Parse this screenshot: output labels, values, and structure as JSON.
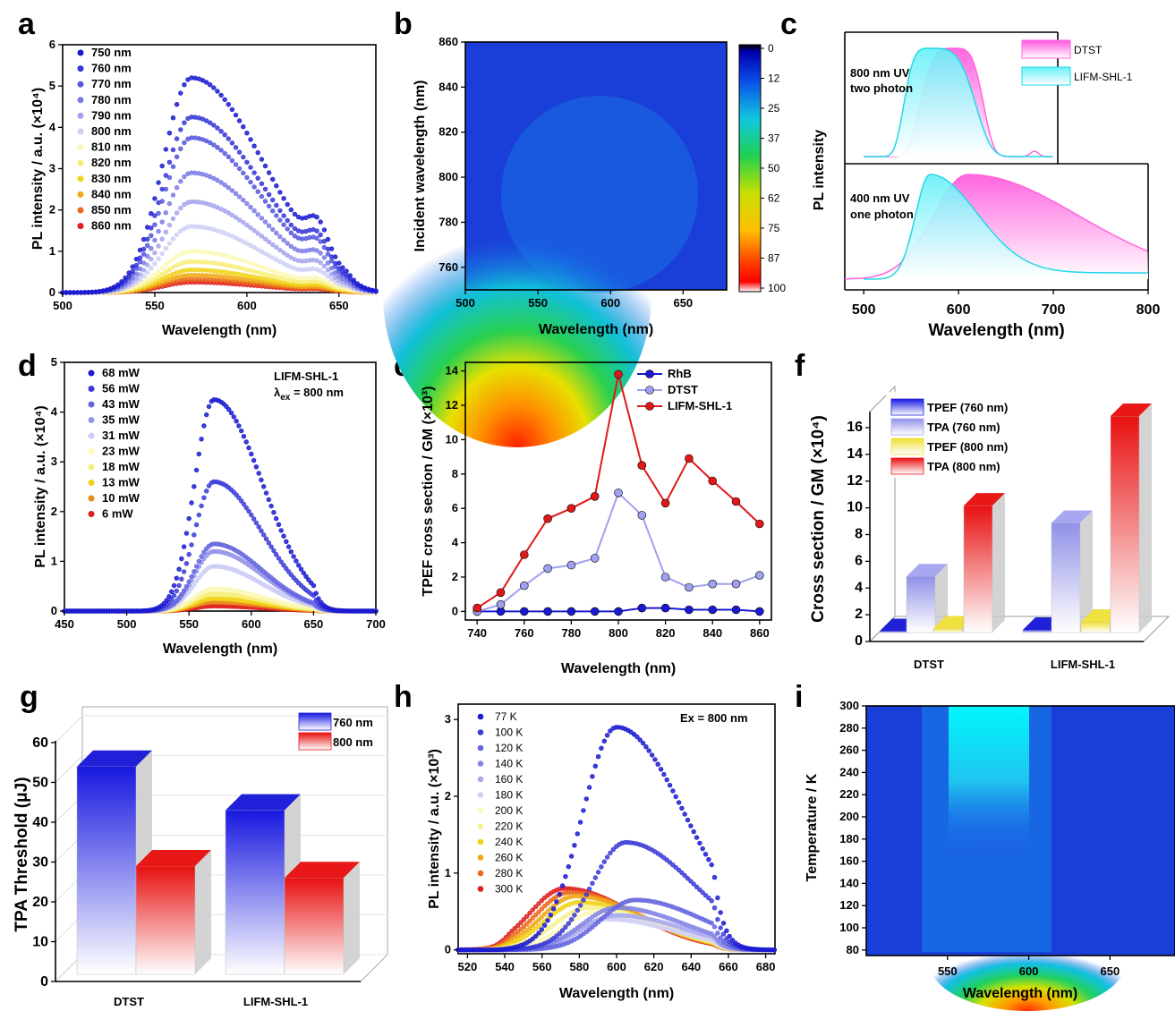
{
  "chart_data": [
    {
      "panel": "a",
      "type": "line",
      "xlabel": "Wavelength (nm)",
      "ylabel": "PL intensity / a.u. (×10⁴)",
      "xlim": [
        500,
        670
      ],
      "ylim": [
        0,
        6
      ],
      "xticks": [
        "500",
        "550",
        "600",
        "650"
      ],
      "yticks": [
        "0",
        "1",
        "2",
        "3",
        "4",
        "5",
        "6"
      ],
      "peak_wavelength": 570,
      "series": [
        {
          "name": "750 nm",
          "peak": 5.2,
          "color": "#1a1ad0"
        },
        {
          "name": "760 nm",
          "peak": 4.25,
          "color": "#3535d8"
        },
        {
          "name": "770 nm",
          "peak": 3.75,
          "color": "#5656df"
        },
        {
          "name": "780 nm",
          "peak": 2.9,
          "color": "#7b7be6"
        },
        {
          "name": "790 nm",
          "peak": 2.2,
          "color": "#a4a4ee"
        },
        {
          "name": "800 nm",
          "peak": 1.6,
          "color": "#cfcff6"
        },
        {
          "name": "810 nm",
          "peak": 1.0,
          "color": "#fbf8b8"
        },
        {
          "name": "820 nm",
          "peak": 0.75,
          "color": "#f7ee7a"
        },
        {
          "name": "830 nm",
          "peak": 0.55,
          "color": "#f0d419"
        },
        {
          "name": "840 nm",
          "peak": 0.42,
          "color": "#f0a818"
        },
        {
          "name": "850 nm",
          "peak": 0.32,
          "color": "#ea6a1c"
        },
        {
          "name": "860 nm",
          "peak": 0.25,
          "color": "#e01e1e"
        }
      ]
    },
    {
      "panel": "b",
      "type": "heatmap",
      "xlabel": "Wavelength (nm)",
      "ylabel": "Incident wavelength (nm)",
      "xlim": [
        500,
        680
      ],
      "ylim": [
        750,
        860
      ],
      "xticks": [
        "500",
        "550",
        "600",
        "650"
      ],
      "yticks": [
        "760",
        "780",
        "800",
        "820",
        "840",
        "860"
      ],
      "colorbar_ticks": [
        "0",
        "12",
        "25",
        "37",
        "50",
        "62",
        "75",
        "87",
        "100"
      ]
    },
    {
      "panel": "c",
      "type": "area",
      "xlabel": "Wavelength (nm)",
      "ylabel": "PL intensity",
      "xlim": [
        480,
        800
      ],
      "xticks": [
        "500",
        "600",
        "700",
        "800"
      ],
      "legend": [
        "DTST",
        "LIFM-SHL-1"
      ],
      "annotations": {
        "top_line1": "800 nm UV",
        "top_line2": "two photon",
        "bottom_line1": "400 nm UV",
        "bottom_line2": "one photon"
      },
      "series": [
        {
          "name": "DTST",
          "color": "#ff66dd",
          "top_peak_nm": 595,
          "bottom_peak_nm": 610
        },
        {
          "name": "LIFM-SHL-1",
          "color": "#22d8e8",
          "top_peak_nm": 570,
          "bottom_peak_nm": 570
        }
      ]
    },
    {
      "panel": "d",
      "type": "line",
      "xlabel": "Wavelength (nm)",
      "ylabel": "PL intensity / a.u. (×10⁴)",
      "xlim": [
        450,
        700
      ],
      "ylim": [
        0,
        5
      ],
      "xticks": [
        "450",
        "500",
        "550",
        "600",
        "650",
        "700"
      ],
      "yticks": [
        "0",
        "1",
        "2",
        "3",
        "4",
        "5"
      ],
      "annotation_line1": "LIFM-SHL-1",
      "annotation_line2": "λ",
      "annotation_sub": "ex",
      "annotation_rest": " = 800 nm",
      "peak_wavelength": 570,
      "series": [
        {
          "name": "68 mW",
          "peak": 4.25,
          "color": "#1a1ad0"
        },
        {
          "name": "56 mW",
          "peak": 2.6,
          "color": "#3b3bd8"
        },
        {
          "name": "43  mW",
          "peak": 1.35,
          "color": "#6565e0"
        },
        {
          "name": "35  mW",
          "peak": 1.2,
          "color": "#9494ea"
        },
        {
          "name": "31  mW",
          "peak": 0.9,
          "color": "#cdcdf5"
        },
        {
          "name": "23  mW",
          "peak": 0.45,
          "color": "#fbf8b8"
        },
        {
          "name": "18  mW",
          "peak": 0.35,
          "color": "#f7ee7a"
        },
        {
          "name": "13  mW",
          "peak": 0.25,
          "color": "#f0d419"
        },
        {
          "name": "10  mW",
          "peak": 0.18,
          "color": "#ea8a1c"
        },
        {
          "name": " 6  mW",
          "peak": 0.1,
          "color": "#e01e1e"
        }
      ]
    },
    {
      "panel": "e",
      "type": "line",
      "xlabel": "Wavelength (nm)",
      "ylabel": "TPEF cross section / GM (×10³)",
      "xlim": [
        735,
        865
      ],
      "ylim": [
        -0.5,
        14.5
      ],
      "xticks": [
        "740",
        "760",
        "780",
        "800",
        "820",
        "840",
        "860"
      ],
      "yticks": [
        "0",
        "2",
        "4",
        "6",
        "8",
        "10",
        "12",
        "14"
      ],
      "x": [
        740,
        750,
        760,
        770,
        780,
        790,
        800,
        810,
        820,
        830,
        840,
        850,
        860
      ],
      "series": [
        {
          "name": "RhB",
          "color": "#1a1ad0",
          "values": [
            0,
            0,
            0,
            0,
            0,
            0,
            0,
            0.2,
            0.2,
            0.1,
            0.1,
            0.1,
            0
          ]
        },
        {
          "name": "DTST",
          "color": "#a0a0f0",
          "values": [
            0,
            0.4,
            1.5,
            2.5,
            2.7,
            3.1,
            6.9,
            5.6,
            2.0,
            1.4,
            1.6,
            1.6,
            2.1
          ]
        },
        {
          "name": "LIFM-SHL-1",
          "color": "#e01818",
          "values": [
            0.2,
            1.1,
            3.3,
            5.4,
            6.0,
            6.7,
            13.8,
            8.5,
            6.3,
            8.9,
            7.6,
            6.4,
            5.1
          ]
        }
      ]
    },
    {
      "panel": "f",
      "type": "bar",
      "ylabel": "Cross section / GM (×10⁴)",
      "ylim": [
        0,
        16
      ],
      "yticks": [
        "0",
        "2",
        "4",
        "6",
        "8",
        "10",
        "12",
        "14",
        "16"
      ],
      "categories": [
        "DTST",
        "LIFM-SHL-1"
      ],
      "series": [
        {
          "name": "TPEF (760 nm)",
          "color": "#2020d8",
          "values": [
            0.1,
            0.2
          ]
        },
        {
          "name": "TPA (760 nm)",
          "color": "#a8a8f0",
          "values": [
            4.2,
            8.2
          ]
        },
        {
          "name": "TPEF (800 nm)",
          "color": "#f0e040",
          "values": [
            0.3,
            0.8
          ]
        },
        {
          "name": "TPA (800 nm)",
          "color": "#e81818",
          "values": [
            9.5,
            16.2
          ]
        }
      ]
    },
    {
      "panel": "g",
      "type": "bar",
      "ylabel": "TPA Threshold (μJ)",
      "ylim": [
        0,
        60
      ],
      "yticks": [
        "0",
        "10",
        "20",
        "30",
        "40",
        "50",
        "60"
      ],
      "categories": [
        "DTST",
        "LIFM-SHL-1"
      ],
      "series": [
        {
          "name": "760 nm",
          "color": "#2020d8",
          "values": [
            54,
            43
          ]
        },
        {
          "name": "800 nm",
          "color": "#e81818",
          "values": [
            29,
            26
          ]
        }
      ]
    },
    {
      "panel": "h",
      "type": "line",
      "xlabel": "Wavelength (nm)",
      "ylabel": "PL intensity / a.u. (×10³)",
      "xlim": [
        515,
        685
      ],
      "ylim": [
        -0.05,
        3.2
      ],
      "xticks": [
        "520",
        "540",
        "560",
        "580",
        "600",
        "620",
        "640",
        "660",
        "680"
      ],
      "yticks": [
        "0",
        "1",
        "2",
        "3"
      ],
      "annotation": "Ex = 800 nm",
      "series": [
        {
          "name": "77 K",
          "peak": 2.9,
          "peak_wl": 600,
          "color": "#1a1ad0"
        },
        {
          "name": "100 K",
          "peak": 1.4,
          "peak_wl": 605,
          "color": "#3b3bd8"
        },
        {
          "name": "120 K",
          "peak": 0.65,
          "peak_wl": 610,
          "color": "#6565e0"
        },
        {
          "name": "140 K",
          "peak": 0.55,
          "peak_wl": 600,
          "color": "#8585e6"
        },
        {
          "name": "160 K",
          "peak": 0.45,
          "peak_wl": 600,
          "color": "#a8a8ee"
        },
        {
          "name": "180 K",
          "peak": 0.4,
          "peak_wl": 595,
          "color": "#d0d0f6"
        },
        {
          "name": "200 K",
          "peak": 0.5,
          "peak_wl": 590,
          "color": "#fbf8c0"
        },
        {
          "name": "220 K",
          "peak": 0.55,
          "peak_wl": 585,
          "color": "#f8f090"
        },
        {
          "name": "240 K",
          "peak": 0.62,
          "peak_wl": 580,
          "color": "#f0d419"
        },
        {
          "name": "260 K",
          "peak": 0.7,
          "peak_wl": 578,
          "color": "#f0a818"
        },
        {
          "name": "280 K",
          "peak": 0.75,
          "peak_wl": 575,
          "color": "#ea6a1c"
        },
        {
          "name": "300 K",
          "peak": 0.8,
          "peak_wl": 572,
          "color": "#e01e1e"
        }
      ]
    },
    {
      "panel": "i",
      "type": "heatmap",
      "xlabel": "Wavelength (nm)",
      "ylabel": "Temperature / K",
      "xlim": [
        500,
        690
      ],
      "ylim": [
        75,
        300
      ],
      "xticks": [
        "550",
        "600",
        "650"
      ],
      "yticks": [
        "80",
        "100",
        "120",
        "140",
        "160",
        "180",
        "200",
        "220",
        "240",
        "260",
        "280",
        "300"
      ]
    }
  ],
  "panel_labels": [
    "a",
    "b",
    "c",
    "d",
    "e",
    "f",
    "g",
    "h",
    "i"
  ]
}
